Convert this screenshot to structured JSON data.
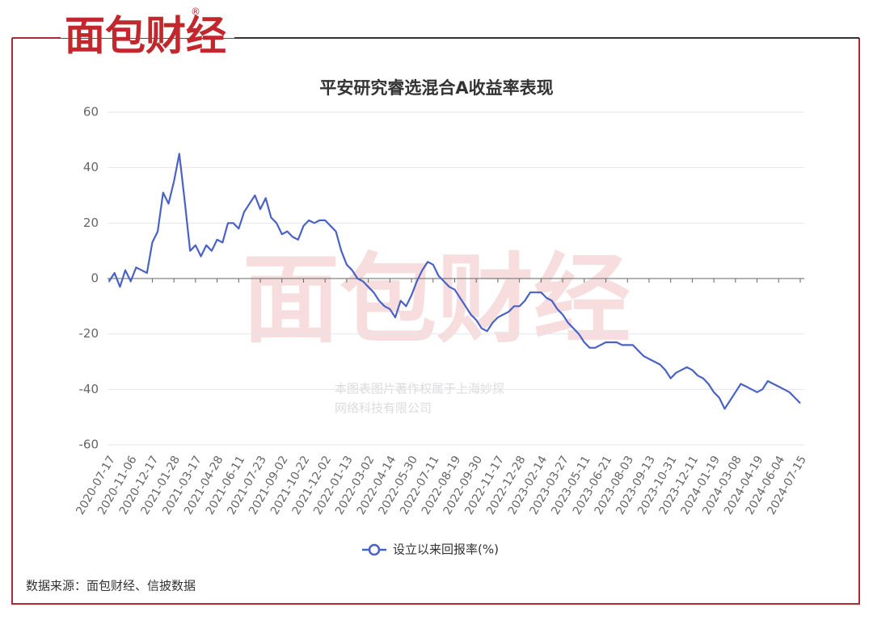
{
  "brand": {
    "name": "面包财经",
    "mark": "®"
  },
  "watermark": [
    "本图表图片著作权属于上海妙探",
    "网络科技有限公司"
  ],
  "source": "数据来源：面包财经、信披数据",
  "chart_data": {
    "type": "line",
    "title": "平安研究睿选混合A收益率表现",
    "categories": [
      "2020-07-17",
      null,
      null,
      null,
      "2020-11-06",
      null,
      null,
      null,
      "2020-12-17",
      null,
      null,
      null,
      "2021-01-28",
      null,
      null,
      null,
      "2021-03-17",
      null,
      null,
      null,
      "2021-04-28",
      null,
      null,
      null,
      "2021-06-11",
      null,
      null,
      null,
      "2021-07-23",
      null,
      null,
      null,
      "2021-09-02",
      null,
      null,
      null,
      "2021-10-22",
      null,
      null,
      null,
      "2021-12-02",
      null,
      null,
      null,
      "2022-01-13",
      null,
      null,
      null,
      "2022-03-02",
      null,
      null,
      null,
      "2022-04-14",
      null,
      null,
      null,
      "2022-05-30",
      null,
      null,
      null,
      "2022-07-11",
      null,
      null,
      null,
      "2022-08-19",
      null,
      null,
      null,
      "2022-09-30",
      null,
      null,
      null,
      "2022-11-17",
      null,
      null,
      null,
      "2022-12-28",
      null,
      null,
      null,
      "2023-02-14",
      null,
      null,
      null,
      "2023-03-27",
      null,
      null,
      null,
      "2023-05-11",
      null,
      null,
      null,
      "2023-06-21",
      null,
      null,
      null,
      "2023-08-03",
      null,
      null,
      null,
      "2023-09-13",
      null,
      null,
      null,
      "2023-10-31",
      null,
      null,
      null,
      "2023-12-11",
      null,
      null,
      null,
      "2024-01-19",
      null,
      null,
      null,
      "2024-03-08",
      null,
      null,
      null,
      "2024-04-19",
      null,
      null,
      null,
      "2024-06-04",
      null,
      null,
      null,
      "2024-07-15"
    ],
    "series": [
      {
        "name": "设立以来回报率(%)",
        "color": "#4a62c4",
        "values": [
          -1,
          2,
          -3,
          3,
          -1,
          4,
          3,
          2,
          13,
          17,
          31,
          27,
          35,
          45,
          28,
          10,
          12,
          8,
          12,
          10,
          14,
          13,
          20,
          20,
          18,
          24,
          27,
          30,
          25,
          29,
          22,
          20,
          16,
          17,
          15,
          14,
          19,
          21,
          20,
          21,
          21,
          19,
          17,
          10,
          5,
          3,
          0,
          -1,
          -3,
          -5,
          -8,
          -10,
          -11,
          -14,
          -8,
          -10,
          -6,
          -1,
          3,
          6,
          5,
          1,
          -1,
          -3,
          -4,
          -7,
          -10,
          -13,
          -15,
          -18,
          -19,
          -16,
          -14,
          -13,
          -12,
          -10,
          -10,
          -8,
          -5,
          -5,
          -5,
          -7,
          -8,
          -11,
          -13,
          -16,
          -18,
          -20,
          -23,
          -25,
          -25,
          -24,
          -23,
          -23,
          -23,
          -24,
          -24,
          -24,
          -26,
          -28,
          -29,
          -30,
          -31,
          -33,
          -36,
          -34,
          -33,
          -32,
          -33,
          -35,
          -36,
          -38,
          -41,
          -43,
          -47,
          -44,
          -41,
          -38,
          -39,
          -40,
          -41,
          -40,
          -37,
          -38,
          -39,
          -40,
          -41,
          -43,
          -45
        ]
      }
    ],
    "ylim": [
      -60,
      60
    ],
    "yticks": [
      -60,
      -40,
      -20,
      0,
      20,
      40,
      60
    ],
    "grid": true
  }
}
